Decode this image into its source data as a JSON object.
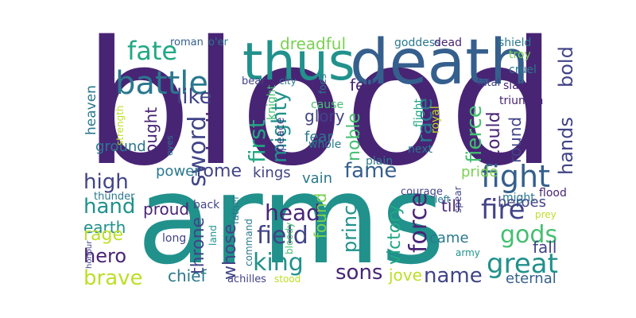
{
  "cloud": {
    "palette": {
      "dark_purple": "#482475",
      "indigo": "#414487",
      "slate_blue": "#355f8d",
      "steel_blue": "#2a788e",
      "teal": "#21918c",
      "sea_green": "#22a884",
      "green": "#44bf70",
      "light_green": "#7ad151",
      "yellow_green": "#bddf26"
    },
    "words": [
      {
        "text": "blood",
        "color": "#482475"
      },
      {
        "text": "arms",
        "color": "#21918c"
      },
      {
        "text": "death",
        "color": "#355f8d"
      },
      {
        "text": "thus",
        "color": "#21918c"
      },
      {
        "text": "battle",
        "color": "#2a788e"
      },
      {
        "text": "fate",
        "color": "#22a884"
      },
      {
        "text": "sword",
        "color": "#414487"
      },
      {
        "text": "like",
        "color": "#414487"
      },
      {
        "text": "hell",
        "color": "#482475"
      },
      {
        "text": "first",
        "color": "#22a884"
      },
      {
        "text": "mighty",
        "color": "#21918c"
      },
      {
        "text": "dreadful",
        "color": "#7ad151"
      },
      {
        "text": "race",
        "color": "#2a788e"
      },
      {
        "text": "fierce",
        "color": "#44bf70"
      },
      {
        "text": "hands",
        "color": "#414487"
      },
      {
        "text": "bold",
        "color": "#414487"
      },
      {
        "text": "heaven",
        "color": "#2a788e"
      },
      {
        "text": "ground",
        "color": "#2a788e"
      },
      {
        "text": "fought",
        "color": "#482475"
      },
      {
        "text": "glory",
        "color": "#414487"
      },
      {
        "text": "fear",
        "color": "#2a788e"
      },
      {
        "text": "fell",
        "color": "#482475"
      },
      {
        "text": "noble",
        "color": "#44bf70"
      },
      {
        "text": "could",
        "color": "#482475"
      },
      {
        "text": "round",
        "color": "#414487"
      },
      {
        "text": "fight",
        "color": "#355f8d"
      },
      {
        "text": "high",
        "color": "#414487"
      },
      {
        "text": "hand",
        "color": "#21918c"
      },
      {
        "text": "power",
        "color": "#2a788e"
      },
      {
        "text": "rome",
        "color": "#414487"
      },
      {
        "text": "kings",
        "color": "#414487"
      },
      {
        "text": "fame",
        "color": "#355f8d"
      },
      {
        "text": "vain",
        "color": "#2a788e"
      },
      {
        "text": "force",
        "color": "#482475"
      },
      {
        "text": "pride",
        "color": "#7ad151"
      },
      {
        "text": "fire",
        "color": "#414487"
      },
      {
        "text": "earth",
        "color": "#21918c"
      },
      {
        "text": "rage",
        "color": "#bddf26"
      },
      {
        "text": "hero",
        "color": "#482475"
      },
      {
        "text": "brave",
        "color": "#bddf26"
      },
      {
        "text": "proud",
        "color": "#482475"
      },
      {
        "text": "throne",
        "color": "#414487"
      },
      {
        "text": "head",
        "color": "#482475"
      },
      {
        "text": "whose",
        "color": "#414487"
      },
      {
        "text": "field",
        "color": "#414487"
      },
      {
        "text": "king",
        "color": "#21918c"
      },
      {
        "text": "found",
        "color": "#7ad151"
      },
      {
        "text": "prince",
        "color": "#21918c"
      },
      {
        "text": "victory",
        "color": "#22a884"
      },
      {
        "text": "till",
        "color": "#482475"
      },
      {
        "text": "heroes",
        "color": "#414487"
      },
      {
        "text": "gods",
        "color": "#44bf70"
      },
      {
        "text": "came",
        "color": "#2a788e"
      },
      {
        "text": "fall",
        "color": "#414487"
      },
      {
        "text": "great",
        "color": "#21918c"
      },
      {
        "text": "sons",
        "color": "#482475"
      },
      {
        "text": "name",
        "color": "#414487"
      },
      {
        "text": "jove",
        "color": "#bddf26"
      },
      {
        "text": "chief",
        "color": "#2a788e"
      },
      {
        "text": "eternal",
        "color": "#355f8d"
      },
      {
        "text": "roman",
        "color": "#355f8d"
      },
      {
        "text": "o'er",
        "color": "#2a788e"
      },
      {
        "text": "goddess",
        "color": "#2a788e"
      },
      {
        "text": "dead",
        "color": "#482475"
      },
      {
        "text": "shield",
        "color": "#2a788e"
      },
      {
        "text": "troy",
        "color": "#7ad151"
      },
      {
        "text": "cruel",
        "color": "#2a788e"
      },
      {
        "text": "slain",
        "color": "#482475"
      },
      {
        "text": "triumph",
        "color": "#482475"
      },
      {
        "text": "fatal",
        "color": "#414487"
      },
      {
        "text": "bear",
        "color": "#414487"
      },
      {
        "text": "city",
        "color": "#2a788e"
      },
      {
        "text": "foes",
        "color": "#2a788e"
      },
      {
        "text": "knight",
        "color": "#44bf70"
      },
      {
        "text": "cause",
        "color": "#44bf70"
      },
      {
        "text": "peace",
        "color": "#414487"
      },
      {
        "text": "whole",
        "color": "#2a788e"
      },
      {
        "text": "flight",
        "color": "#22a884"
      },
      {
        "text": "royal",
        "color": "#bddf26"
      },
      {
        "text": "next",
        "color": "#2a788e"
      },
      {
        "text": "strength",
        "color": "#bddf26"
      },
      {
        "text": "eyes",
        "color": "#2a788e"
      },
      {
        "text": "plain",
        "color": "#2a788e"
      },
      {
        "text": "courage",
        "color": "#414487"
      },
      {
        "text": "back",
        "color": "#414487"
      },
      {
        "text": "thunder",
        "color": "#2a788e"
      },
      {
        "text": "might",
        "color": "#2a788e"
      },
      {
        "text": "flood",
        "color": "#482475"
      },
      {
        "text": "left",
        "color": "#2a788e"
      },
      {
        "text": "spear",
        "color": "#414487"
      },
      {
        "text": "prey",
        "color": "#bddf26"
      },
      {
        "text": "father",
        "color": "#2a788e"
      },
      {
        "text": "land",
        "color": "#21918c"
      },
      {
        "text": "command",
        "color": "#2a788e"
      },
      {
        "text": "long",
        "color": "#414487"
      },
      {
        "text": "bloody",
        "color": "#44bf70"
      },
      {
        "text": "army",
        "color": "#21918c"
      },
      {
        "text": "honour",
        "color": "#414487"
      },
      {
        "text": "achilles",
        "color": "#414487"
      },
      {
        "text": "stood",
        "color": "#bddf26"
      }
    ]
  }
}
